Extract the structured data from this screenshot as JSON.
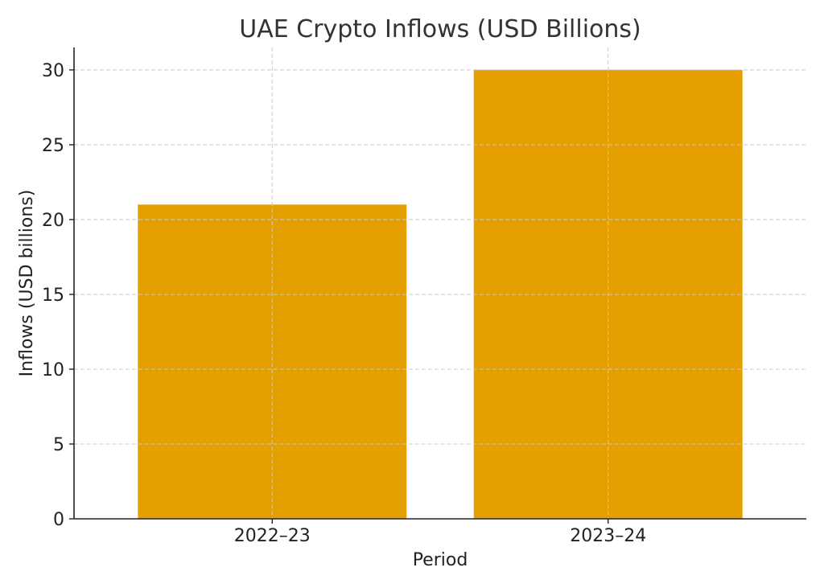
{
  "chart_data": {
    "type": "bar",
    "title": "UAE Crypto Inflows (USD Billions)",
    "xlabel": "Period",
    "ylabel": "Inflows (USD billions)",
    "categories": [
      "2022–23",
      "2023–24"
    ],
    "values": [
      21,
      30
    ],
    "ylim": [
      0,
      31.5
    ],
    "yticks": [
      0,
      5,
      10,
      15,
      20,
      25,
      30
    ],
    "grid": true,
    "bar_color": "#E69F00"
  }
}
